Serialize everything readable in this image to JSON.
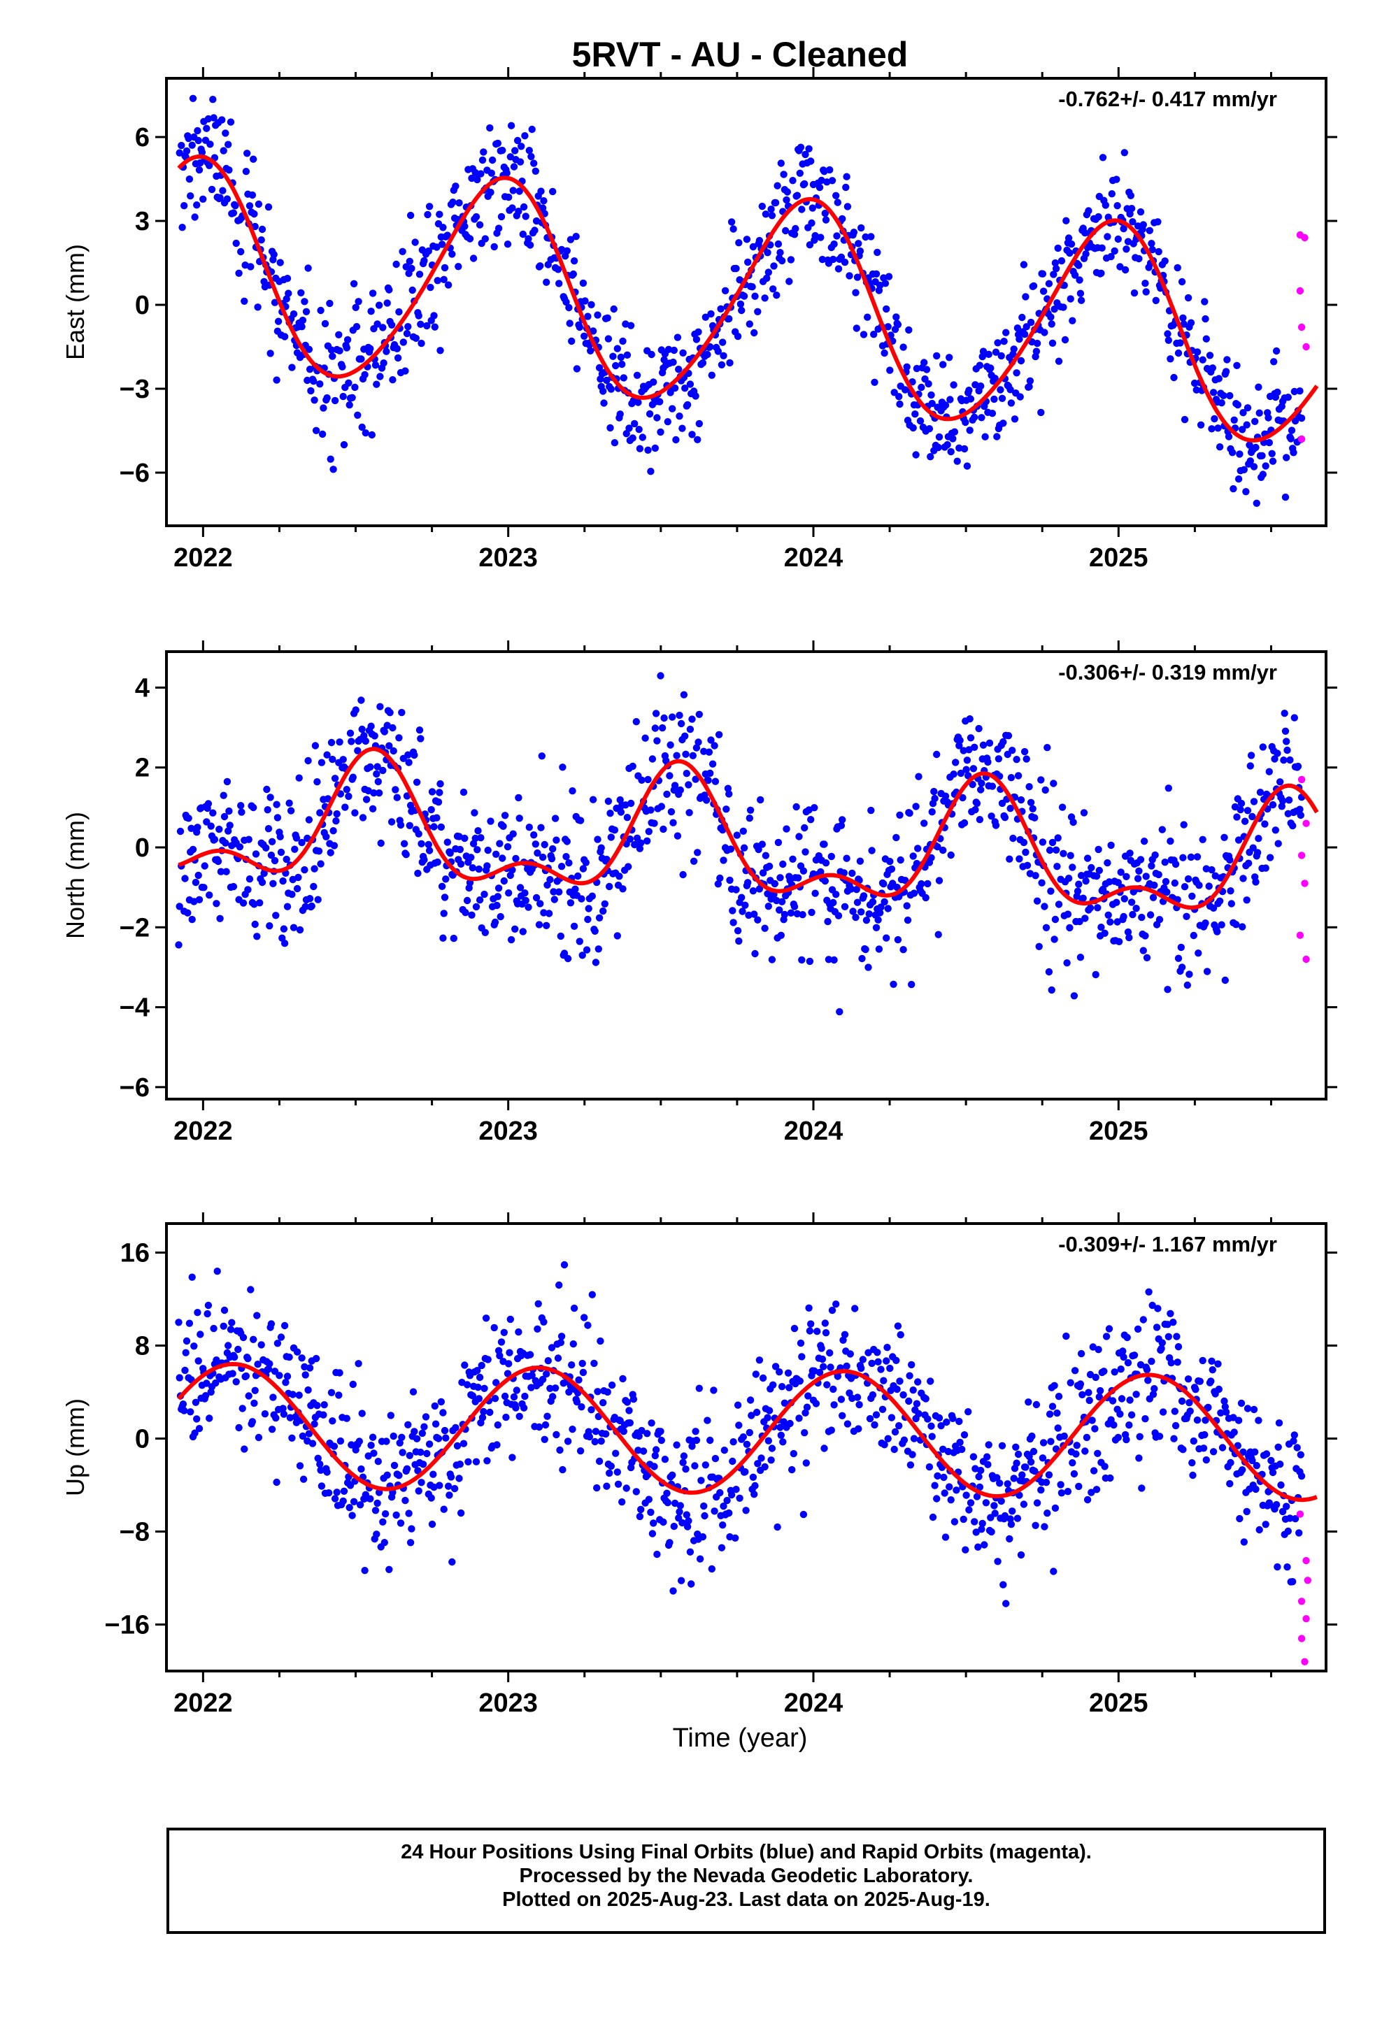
{
  "chart_title": "5RVT  - AU - Cleaned",
  "x_axis_title": "Time (year)",
  "footer": {
    "line1": "24 Hour Positions Using Final Orbits (blue) and Rapid Orbits (magenta).",
    "line2": "Processed by the Nevada Geodetic Laboratory.",
    "line3": "Plotted on 2025-Aug-23. Last data on 2025-Aug-19."
  },
  "colors": {
    "final": "#0000ff",
    "rapid": "#ff00ff",
    "fit": "#ff0000",
    "axis": "#000000"
  },
  "chart_data": [
    {
      "type": "scatter",
      "component": "East",
      "ylabel": "East (mm)",
      "rate_text": "-0.762+/- 0.417 mm/yr",
      "xlim": [
        2021.88,
        2025.68
      ],
      "ylim": [
        -7.9,
        8.1
      ],
      "x_ticks": [
        2022,
        2023,
        2024,
        2025
      ],
      "y_ticks": [
        -6,
        -3,
        0,
        3,
        6
      ],
      "fit_model": {
        "rate_mm_per_yr": -0.762,
        "mean": 0.0,
        "annual_amp": 3.7,
        "annual_peak": 2022.97,
        "semiannual_amp": 0.4,
        "semiannual_peak": 2023.05
      },
      "final_series": {
        "name": "Final Orbits",
        "x_start": 2021.92,
        "x_end": 2025.6,
        "scatter_mm": 1.15
      },
      "rapid_points": [
        [
          2025.595,
          2.5
        ],
        [
          2025.61,
          2.4
        ],
        [
          2025.595,
          0.5
        ],
        [
          2025.6,
          -0.8
        ],
        [
          2025.615,
          -1.5
        ],
        [
          2025.6,
          -4.8
        ]
      ]
    },
    {
      "type": "scatter",
      "component": "North",
      "ylabel": "North (mm)",
      "rate_text": "-0.306+/- 0.319 mm/yr",
      "xlim": [
        2021.88,
        2025.68
      ],
      "ylim": [
        -6.3,
        4.9
      ],
      "x_ticks": [
        2022,
        2023,
        2024,
        2025
      ],
      "y_ticks": [
        -6,
        -4,
        -2,
        0,
        2,
        4
      ],
      "fit_model": {
        "rate_mm_per_yr": -0.306,
        "mean": 0.0,
        "annual_amp": 1.35,
        "annual_peak": 2022.56,
        "semiannual_amp": 0.75,
        "semiannual_peak": 2022.56
      },
      "final_series": {
        "name": "Final Orbits",
        "x_start": 2021.92,
        "x_end": 2025.6,
        "scatter_mm": 1.0
      },
      "rapid_points": [
        [
          2025.6,
          1.7
        ],
        [
          2025.615,
          0.6
        ],
        [
          2025.6,
          -0.2
        ],
        [
          2025.61,
          -0.9
        ],
        [
          2025.595,
          -2.2
        ],
        [
          2025.615,
          -2.8
        ]
      ]
    },
    {
      "type": "scatter",
      "component": "Up",
      "ylabel": "Up (mm)",
      "rate_text": "-0.309+/- 1.167 mm/yr",
      "xlim": [
        2021.88,
        2025.68
      ],
      "ylim": [
        -20.0,
        18.5
      ],
      "x_ticks": [
        2022,
        2023,
        2024,
        2025
      ],
      "y_ticks": [
        -16,
        -8,
        0,
        8,
        16
      ],
      "fit_model": {
        "rate_mm_per_yr": -0.309,
        "mean": 0.6,
        "annual_amp": 5.3,
        "annual_peak": 2022.1,
        "semiannual_amp": 0.0,
        "semiannual_peak": 2022.1
      },
      "final_series": {
        "name": "Final Orbits",
        "x_start": 2021.92,
        "x_end": 2025.6,
        "scatter_mm": 3.3
      },
      "rapid_points": [
        [
          2025.595,
          -6.5
        ],
        [
          2025.615,
          -10.5
        ],
        [
          2025.62,
          -12.2
        ],
        [
          2025.6,
          -14.0
        ],
        [
          2025.615,
          -15.5
        ],
        [
          2025.6,
          -17.2
        ],
        [
          2025.61,
          -19.2
        ]
      ]
    }
  ]
}
